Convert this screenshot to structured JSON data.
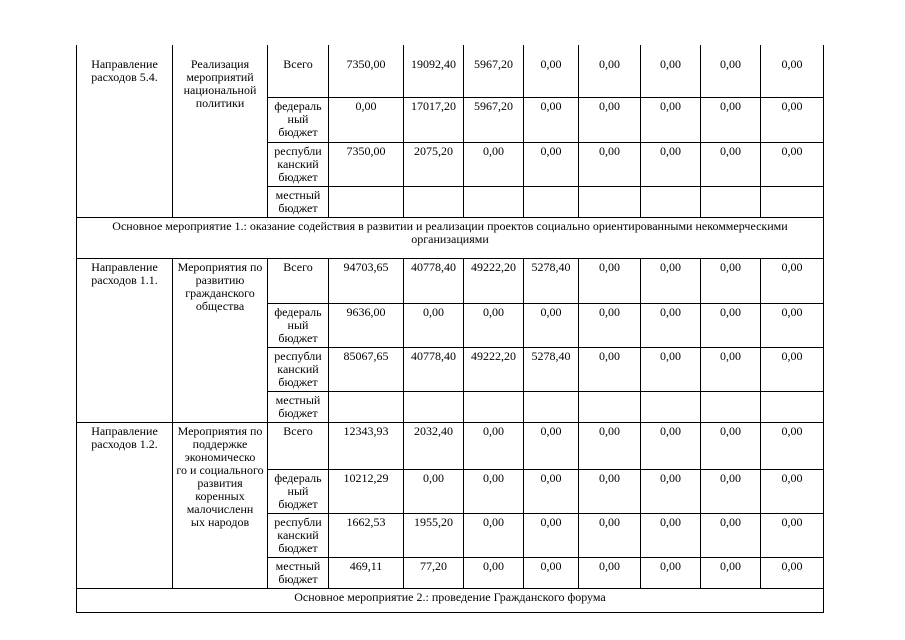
{
  "document": {
    "background_color": "#ffffff",
    "text_color": "#000000",
    "border_color": "#000000"
  },
  "table": {
    "blocks": [
      {
        "type": "group",
        "direction": "Направление расходов 5.4.",
        "activity": "Реализация мероприятий национальной политики",
        "rows": [
          {
            "level": "Всего",
            "values": [
              "7350,00",
              "19092,40",
              "5967,20",
              "0,00",
              "0,00",
              "0,00",
              "0,00",
              "0,00"
            ]
          },
          {
            "level": "федераль\nный\nбюджет",
            "values": [
              "0,00",
              "17017,20",
              "5967,20",
              "0,00",
              "0,00",
              "0,00",
              "0,00",
              "0,00"
            ]
          },
          {
            "level": "республи\nканский\nбюджет",
            "values": [
              "7350,00",
              "2075,20",
              "0,00",
              "0,00",
              "0,00",
              "0,00",
              "0,00",
              "0,00"
            ]
          },
          {
            "level": "местный\nбюджет",
            "values": [
              "",
              "",
              "",
              "",
              "",
              "",
              "",
              ""
            ]
          }
        ]
      },
      {
        "type": "section",
        "text": "Основное мероприятие 1.: оказание содействия в развитии и реализации проектов социально ориентированными некоммерческими\nорганизациями"
      },
      {
        "type": "group",
        "direction": "Направление расходов 1.1.",
        "activity": "Мероприятия по развитию гражданского общества",
        "rows": [
          {
            "level": "Всего",
            "values": [
              "94703,65",
              "40778,40",
              "49222,20",
              "5278,40",
              "0,00",
              "0,00",
              "0,00",
              "0,00"
            ]
          },
          {
            "level": "федераль\nный\nбюджет",
            "values": [
              "9636,00",
              "0,00",
              "0,00",
              "0,00",
              "0,00",
              "0,00",
              "0,00",
              "0,00"
            ]
          },
          {
            "level": "республи\nканский\nбюджет",
            "values": [
              "85067,65",
              "40778,40",
              "49222,20",
              "5278,40",
              "0,00",
              "0,00",
              "0,00",
              "0,00"
            ]
          },
          {
            "level": "местный\nбюджет",
            "values": [
              "",
              "",
              "",
              "",
              "",
              "",
              "",
              ""
            ]
          }
        ]
      },
      {
        "type": "group",
        "direction": "Направление расходов 1.2.",
        "activity": "Мероприятия по поддержке экономическо\nго и социального развития коренных малочисленн\nых народов",
        "rows": [
          {
            "level": "Всего",
            "values": [
              "12343,93",
              "2032,40",
              "0,00",
              "0,00",
              "0,00",
              "0,00",
              "0,00",
              "0,00"
            ]
          },
          {
            "level": "федераль\nный\nбюджет",
            "values": [
              "10212,29",
              "0,00",
              "0,00",
              "0,00",
              "0,00",
              "0,00",
              "0,00",
              "0,00"
            ]
          },
          {
            "level": "республи\nканский\nбюджет",
            "values": [
              "1662,53",
              "1955,20",
              "0,00",
              "0,00",
              "0,00",
              "0,00",
              "0,00",
              "0,00"
            ]
          },
          {
            "level": "местный\nбюджет",
            "values": [
              "469,11",
              "77,20",
              "0,00",
              "0,00",
              "0,00",
              "0,00",
              "0,00",
              "0,00"
            ]
          }
        ]
      },
      {
        "type": "section",
        "text": "Основное мероприятие 2.: проведение Гражданского форума"
      }
    ]
  }
}
